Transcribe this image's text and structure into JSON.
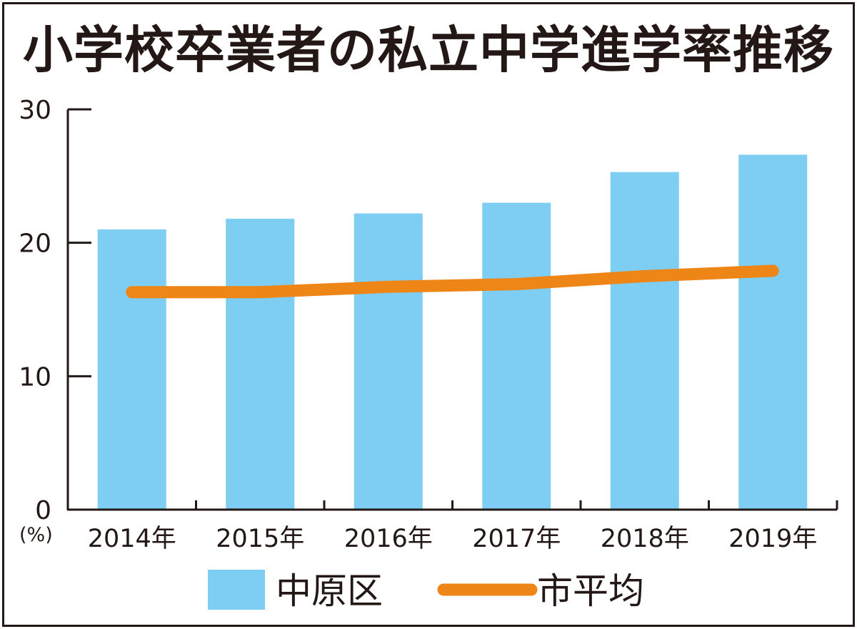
{
  "title": "小学校卒業者の私立中学進学率推移",
  "chart_data": {
    "type": "bar",
    "title": "小学校卒業者の私立中学進学率推移",
    "categories": [
      "2014年",
      "2015年",
      "2016年",
      "2017年",
      "2018年",
      "2019年"
    ],
    "series": [
      {
        "name": "中原区",
        "type": "bar",
        "color": "#7ecef4",
        "values": [
          21.0,
          21.8,
          22.2,
          23.0,
          25.3,
          26.6
        ]
      },
      {
        "name": "市平均",
        "type": "line",
        "color": "#ed8616",
        "values": [
          16.3,
          16.3,
          16.7,
          16.9,
          17.5,
          17.9
        ]
      }
    ],
    "ylim": [
      0,
      30
    ],
    "yticks": [
      0,
      10,
      20,
      30
    ],
    "ytick_labels": [
      "0",
      "10",
      "20",
      "30"
    ],
    "yunit": "(%)",
    "grid": false,
    "legend_position": "bottom"
  }
}
